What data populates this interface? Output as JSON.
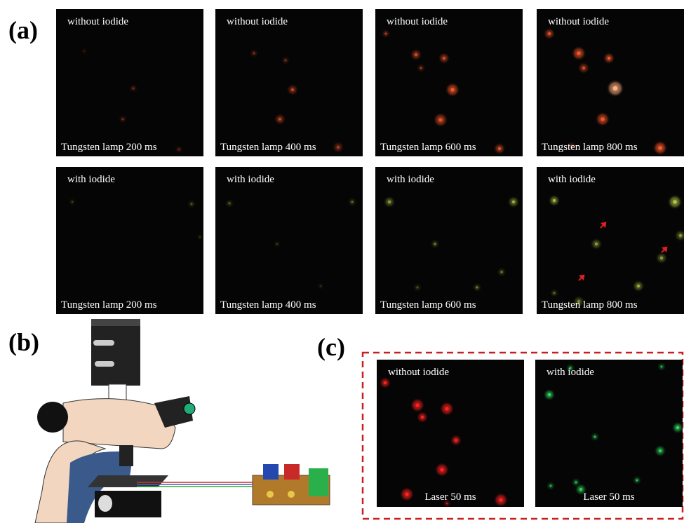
{
  "panel_a": {
    "label": "(a)",
    "rows": [
      [
        {
          "top": "without iodide",
          "bottom": "Tungsten lamp 200 ms"
        },
        {
          "top": "without iodide",
          "bottom": "Tungsten lamp 400 ms"
        },
        {
          "top": "without iodide",
          "bottom": "Tungsten lamp 600 ms"
        },
        {
          "top": "without iodide",
          "bottom": "Tungsten lamp 800 ms"
        }
      ],
      [
        {
          "top": "with iodide",
          "bottom": "Tungsten lamp 200 ms"
        },
        {
          "top": "with iodide",
          "bottom": "Tungsten lamp 400 ms"
        },
        {
          "top": "with iodide",
          "bottom": "Tungsten lamp 600 ms"
        },
        {
          "top": "with iodide",
          "bottom": "Tungsten lamp 800 ms"
        }
      ]
    ]
  },
  "panel_b": {
    "label": "(b)"
  },
  "panel_c": {
    "label": "(c)",
    "images": [
      {
        "top": "without iodide",
        "bottom": "Laser 50 ms"
      },
      {
        "top": "with iodide",
        "bottom": "Laser 50 ms"
      }
    ]
  }
}
